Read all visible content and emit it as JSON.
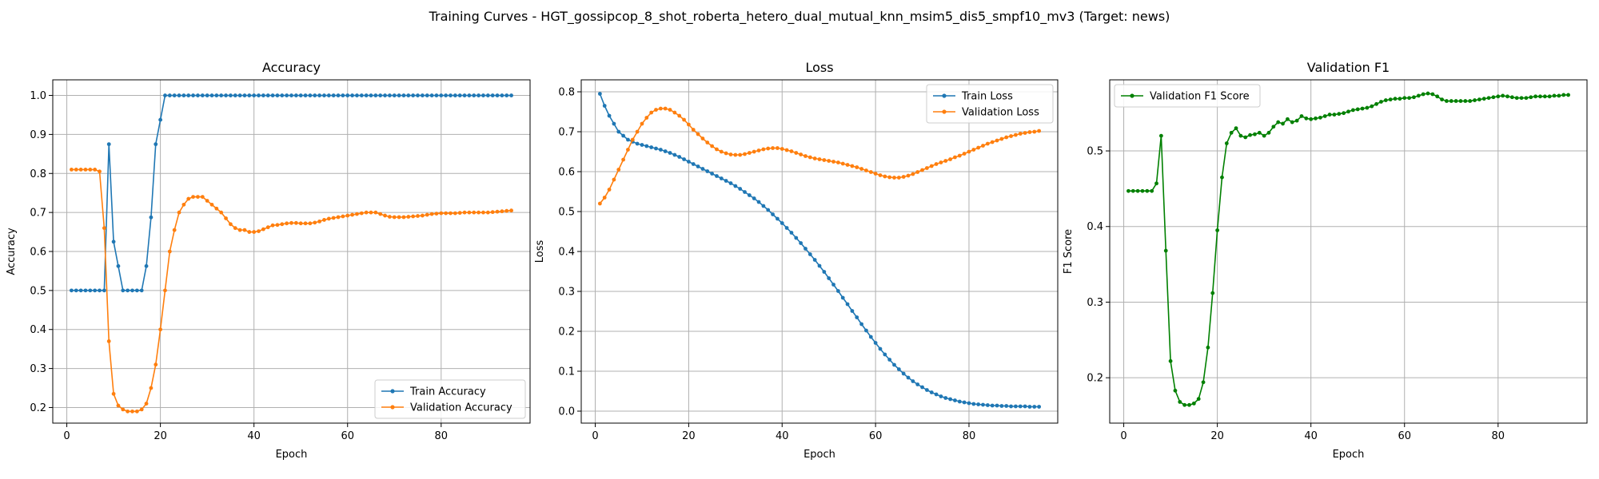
{
  "figure": {
    "suptitle": "Training Curves - HGT_gossipcop_8_shot_roberta_hetero_dual_mutual_knn_msim5_dis5_smpf10_mv3 (Target: news)"
  },
  "colors": {
    "blue": "#1f77b4",
    "orange": "#ff7f0e",
    "green": "#008000",
    "grid": "#b0b0b0"
  },
  "chart_data": [
    {
      "type": "line",
      "title": "Accuracy",
      "xlabel": "Epoch",
      "ylabel": "Accuracy",
      "xlim": [
        -3,
        99
      ],
      "ylim": [
        0.16,
        1.04
      ],
      "xticks": [
        0,
        20,
        40,
        60,
        80
      ],
      "yticks": [
        0.2,
        0.3,
        0.4,
        0.5,
        0.6,
        0.7,
        0.8,
        0.9,
        1.0
      ],
      "ytick_labels": [
        "0.2",
        "0.3",
        "0.4",
        "0.5",
        "0.6",
        "0.7",
        "0.8",
        "0.9",
        "1.0"
      ],
      "grid": true,
      "legend": "lower-right",
      "series": [
        {
          "name": "Train Accuracy",
          "color": "#1f77b4",
          "values": [
            0.5,
            0.5,
            0.5,
            0.5,
            0.5,
            0.5,
            0.5,
            0.5,
            0.875,
            0.625,
            0.5625,
            0.5,
            0.5,
            0.5,
            0.5,
            0.5,
            0.5625,
            0.6875,
            0.875,
            0.9375,
            1.0,
            1.0,
            1.0,
            1.0,
            1.0,
            1.0,
            1.0,
            1.0,
            1.0,
            1.0,
            1.0,
            1.0,
            1.0,
            1.0,
            1.0,
            1.0,
            1.0,
            1.0,
            1.0,
            1.0,
            1.0,
            1.0,
            1.0,
            1.0,
            1.0,
            1.0,
            1.0,
            1.0,
            1.0,
            1.0,
            1.0,
            1.0,
            1.0,
            1.0,
            1.0,
            1.0,
            1.0,
            1.0,
            1.0,
            1.0,
            1.0,
            1.0,
            1.0,
            1.0,
            1.0,
            1.0,
            1.0,
            1.0,
            1.0,
            1.0,
            1.0,
            1.0,
            1.0,
            1.0,
            1.0,
            1.0,
            1.0,
            1.0,
            1.0,
            1.0,
            1.0,
            1.0,
            1.0,
            1.0,
            1.0,
            1.0,
            1.0,
            1.0,
            1.0,
            1.0,
            1.0,
            1.0,
            1.0,
            1.0,
            1.0
          ]
        },
        {
          "name": "Validation Accuracy",
          "color": "#ff7f0e",
          "values": [
            0.81,
            0.81,
            0.81,
            0.81,
            0.81,
            0.81,
            0.805,
            0.66,
            0.37,
            0.235,
            0.205,
            0.195,
            0.19,
            0.19,
            0.19,
            0.195,
            0.21,
            0.25,
            0.31,
            0.4,
            0.5,
            0.6,
            0.655,
            0.7,
            0.72,
            0.735,
            0.74,
            0.74,
            0.74,
            0.73,
            0.72,
            0.71,
            0.7,
            0.685,
            0.67,
            0.66,
            0.655,
            0.655,
            0.65,
            0.65,
            0.652,
            0.657,
            0.662,
            0.667,
            0.668,
            0.67,
            0.672,
            0.673,
            0.673,
            0.672,
            0.672,
            0.672,
            0.674,
            0.677,
            0.681,
            0.684,
            0.686,
            0.688,
            0.69,
            0.692,
            0.694,
            0.696,
            0.698,
            0.7,
            0.7,
            0.7,
            0.696,
            0.692,
            0.689,
            0.688,
            0.688,
            0.688,
            0.689,
            0.69,
            0.691,
            0.692,
            0.694,
            0.696,
            0.697,
            0.698,
            0.698,
            0.698,
            0.698,
            0.699,
            0.7,
            0.7,
            0.7,
            0.7,
            0.7,
            0.7,
            0.701,
            0.702,
            0.703,
            0.704,
            0.705
          ]
        }
      ]
    },
    {
      "type": "line",
      "title": "Loss",
      "xlabel": "Epoch",
      "ylabel": "Loss",
      "xlim": [
        -3,
        99
      ],
      "ylim": [
        -0.03,
        0.83
      ],
      "xticks": [
        0,
        20,
        40,
        60,
        80
      ],
      "yticks": [
        0.0,
        0.1,
        0.2,
        0.3,
        0.4,
        0.5,
        0.6,
        0.7,
        0.8
      ],
      "ytick_labels": [
        "0.0",
        "0.1",
        "0.2",
        "0.3",
        "0.4",
        "0.5",
        "0.6",
        "0.7",
        "0.8"
      ],
      "grid": true,
      "legend": "upper-right",
      "series": [
        {
          "name": "Train Loss",
          "color": "#1f77b4",
          "values": [
            0.795,
            0.765,
            0.74,
            0.72,
            0.7,
            0.69,
            0.68,
            0.675,
            0.67,
            0.667,
            0.664,
            0.661,
            0.658,
            0.655,
            0.651,
            0.647,
            0.642,
            0.637,
            0.631,
            0.625,
            0.619,
            0.613,
            0.607,
            0.601,
            0.595,
            0.589,
            0.583,
            0.577,
            0.571,
            0.564,
            0.557,
            0.549,
            0.541,
            0.533,
            0.524,
            0.514,
            0.504,
            0.493,
            0.482,
            0.471,
            0.459,
            0.447,
            0.434,
            0.421,
            0.407,
            0.393,
            0.379,
            0.364,
            0.349,
            0.333,
            0.317,
            0.301,
            0.284,
            0.268,
            0.251,
            0.235,
            0.218,
            0.202,
            0.186,
            0.171,
            0.156,
            0.142,
            0.129,
            0.116,
            0.105,
            0.094,
            0.084,
            0.075,
            0.067,
            0.06,
            0.053,
            0.047,
            0.042,
            0.037,
            0.033,
            0.03,
            0.027,
            0.024,
            0.022,
            0.02,
            0.018,
            0.017,
            0.016,
            0.015,
            0.014,
            0.014,
            0.013,
            0.013,
            0.012,
            0.012,
            0.012,
            0.012,
            0.011,
            0.011,
            0.011
          ]
        },
        {
          "name": "Validation Loss",
          "color": "#ff7f0e",
          "values": [
            0.52,
            0.535,
            0.555,
            0.58,
            0.605,
            0.63,
            0.655,
            0.68,
            0.7,
            0.72,
            0.735,
            0.748,
            0.755,
            0.758,
            0.758,
            0.755,
            0.748,
            0.74,
            0.73,
            0.718,
            0.705,
            0.694,
            0.683,
            0.673,
            0.664,
            0.656,
            0.65,
            0.646,
            0.643,
            0.642,
            0.642,
            0.644,
            0.647,
            0.65,
            0.653,
            0.656,
            0.658,
            0.659,
            0.659,
            0.657,
            0.654,
            0.651,
            0.647,
            0.643,
            0.639,
            0.636,
            0.633,
            0.631,
            0.629,
            0.627,
            0.625,
            0.623,
            0.62,
            0.617,
            0.614,
            0.611,
            0.607,
            0.603,
            0.599,
            0.595,
            0.591,
            0.588,
            0.586,
            0.585,
            0.585,
            0.587,
            0.59,
            0.594,
            0.599,
            0.604,
            0.609,
            0.614,
            0.619,
            0.623,
            0.627,
            0.631,
            0.636,
            0.64,
            0.645,
            0.65,
            0.655,
            0.66,
            0.665,
            0.67,
            0.674,
            0.678,
            0.682,
            0.686,
            0.689,
            0.692,
            0.695,
            0.697,
            0.699,
            0.7,
            0.702
          ]
        }
      ]
    },
    {
      "type": "line",
      "title": "Validation F1",
      "xlabel": "Epoch",
      "ylabel": "F1 Score",
      "xlim": [
        -3,
        99
      ],
      "ylim": [
        0.14,
        0.594
      ],
      "xticks": [
        0,
        20,
        40,
        60,
        80
      ],
      "yticks": [
        0.2,
        0.3,
        0.4,
        0.5
      ],
      "ytick_labels": [
        "0.2",
        "0.3",
        "0.4",
        "0.5"
      ],
      "grid": true,
      "legend": "upper-left",
      "series": [
        {
          "name": "Validation F1 Score",
          "color": "#008000",
          "values": [
            0.447,
            0.447,
            0.447,
            0.447,
            0.447,
            0.447,
            0.457,
            0.52,
            0.368,
            0.222,
            0.183,
            0.168,
            0.164,
            0.164,
            0.166,
            0.172,
            0.194,
            0.24,
            0.312,
            0.395,
            0.465,
            0.51,
            0.524,
            0.53,
            0.52,
            0.518,
            0.521,
            0.522,
            0.524,
            0.52,
            0.524,
            0.532,
            0.538,
            0.536,
            0.542,
            0.538,
            0.54,
            0.546,
            0.543,
            0.542,
            0.543,
            0.544,
            0.546,
            0.548,
            0.548,
            0.549,
            0.55,
            0.552,
            0.554,
            0.555,
            0.556,
            0.557,
            0.559,
            0.562,
            0.565,
            0.567,
            0.568,
            0.569,
            0.569,
            0.57,
            0.57,
            0.571,
            0.573,
            0.575,
            0.576,
            0.575,
            0.572,
            0.568,
            0.566,
            0.566,
            0.566,
            0.566,
            0.566,
            0.566,
            0.567,
            0.568,
            0.569,
            0.57,
            0.571,
            0.572,
            0.573,
            0.572,
            0.571,
            0.57,
            0.57,
            0.57,
            0.571,
            0.572,
            0.572,
            0.572,
            0.572,
            0.573,
            0.573,
            0.574,
            0.574
          ]
        }
      ]
    }
  ]
}
